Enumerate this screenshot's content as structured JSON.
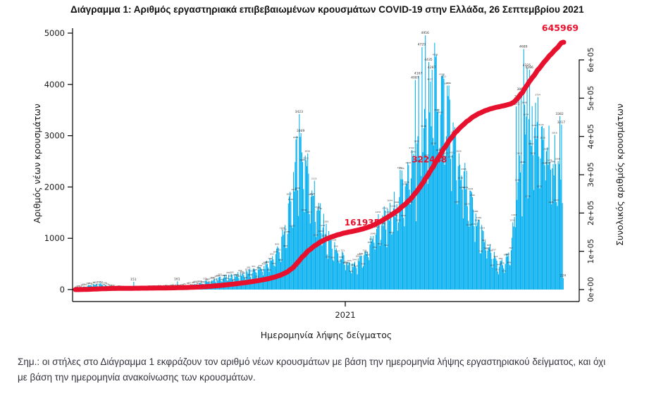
{
  "title": "Διάγραμμα 1: Αριθμός εργαστηριακά επιβεβαιωμένων κρουσμάτων COVID-19 στην Ελλάδα, 26 Σεπτεμβρίου 2021",
  "note_line1": "Σημ.: οι στήλες στο Διάγραμμα 1 εκφράζουν τον αριθμό νέων κρουσμάτων με βάση την ημερομηνία λήψης εργαστηριακού δείγματος, και όχι",
  "note_line2": "με βάση την ημερομηνία ανακοίνωσης των κρουσμάτων.",
  "chart_data": {
    "type": "bar",
    "title": "",
    "xlabel": "Ημερομηνία λήψης δείγματος",
    "x_tick": {
      "label": "2021",
      "day": 313
    },
    "y_left": {
      "label": "Αριθμός νέων κρουσμάτων",
      "ticks": [
        0,
        1000,
        2000,
        3000,
        4000,
        5000
      ],
      "range": [
        0,
        5000
      ]
    },
    "y_right": {
      "label": "Συνολικός αριθμός κρουσμάτων",
      "ticks": [
        "0e+00",
        "1e+05",
        "2e+05",
        "3e+05",
        "4e+05",
        "5e+05",
        "6e+05"
      ],
      "tick_values": [
        0,
        100000,
        200000,
        300000,
        400000,
        500000,
        600000
      ],
      "range": [
        0,
        600000
      ]
    },
    "bars": {
      "color": "#00AEEF",
      "label_color": "#333333",
      "n_days": 581,
      "weekly_envelope": [
        8,
        40,
        75,
        100,
        115,
        80,
        45,
        28,
        20,
        16,
        15,
        17,
        20,
        24,
        28,
        32,
        38,
        45,
        55,
        70,
        90,
        120,
        150,
        180,
        210,
        240,
        260,
        280,
        300,
        330,
        360,
        400,
        460,
        560,
        720,
        950,
        1300,
        2200,
        2900,
        2600,
        2100,
        1700,
        1300,
        1000,
        800,
        700,
        530,
        450,
        520,
        680,
        900,
        1200,
        1450,
        1380,
        1600,
        1950,
        2250,
        2500,
        2600,
        2900,
        3600,
        4100,
        4100,
        3600,
        3100,
        2650,
        2200,
        1800,
        1400,
        1100,
        850,
        650,
        500,
        500,
        900,
        1800,
        2900,
        3500,
        3300,
        3100,
        2900,
        2700,
        2500,
        2450,
        2600,
        2900
      ],
      "labeled_bar_overrides": {
        "69": 151,
        "121": 161,
        "266": 3423,
        "268": 3049,
        "404": 4087,
        "408": 4167,
        "412": 4729,
        "416": 4956,
        "420": 4435,
        "424": 4287,
        "524": 3571,
        "527": 3716,
        "530": 3860,
        "533": 4689,
        "537": 4325,
        "540": 4286,
        "576": 3382,
        "578": 3217,
        "580": 224
      }
    },
    "line": {
      "color": "#E8112D",
      "total_cumulative": 645969,
      "milestone_labels": [
        {
          "label": "161935",
          "value": 161935
        },
        {
          "label": "322448",
          "value": 322448
        },
        {
          "label": "645969",
          "value": 645969
        }
      ]
    }
  }
}
